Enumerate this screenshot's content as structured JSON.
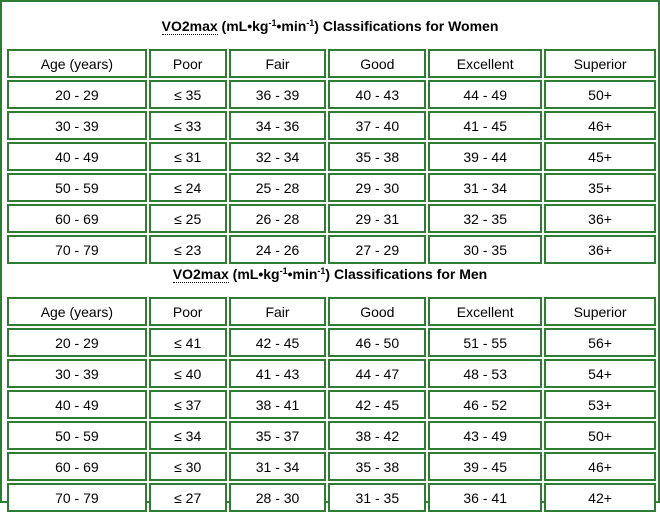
{
  "women": {
    "title": {
      "abbr": "VO2max",
      "unit_open": " (mL•kg",
      "exp1": "-1",
      "unit_mid": "•min",
      "exp2": "-1",
      "rest": ") Classifications for Women"
    },
    "headers": [
      "Age (years)",
      "Poor",
      "Fair",
      "Good",
      "Excellent",
      "Superior"
    ],
    "rows": [
      [
        "20 - 29",
        "≤ 35",
        "36 - 39",
        "40 - 43",
        "44 - 49",
        "50+"
      ],
      [
        "30 - 39",
        "≤ 33",
        "34 - 36",
        "37 - 40",
        "41 - 45",
        "46+"
      ],
      [
        "40 - 49",
        "≤ 31",
        "32 - 34",
        "35 - 38",
        "39 - 44",
        "45+"
      ],
      [
        "50 - 59",
        "≤ 24",
        "25 - 28",
        "29 - 30",
        "31 - 34",
        "35+"
      ],
      [
        "60 - 69",
        "≤ 25",
        "26 - 28",
        "29 - 31",
        "32 - 35",
        "36+"
      ],
      [
        "70 - 79",
        "≤ 23",
        "24 - 26",
        "27 - 29",
        "30 - 35",
        "36+"
      ]
    ]
  },
  "men": {
    "title": {
      "abbr": "VO2max",
      "unit_open": " (mL•kg",
      "exp1": "-1",
      "unit_mid": "•min",
      "exp2": "-1",
      "rest": ") Classifications for Men"
    },
    "headers": [
      "Age (years)",
      "Poor",
      "Fair",
      "Good",
      "Excellent",
      "Superior"
    ],
    "rows": [
      [
        "20 - 29",
        "≤ 41",
        "42 - 45",
        "46 - 50",
        "51 - 55",
        "56+"
      ],
      [
        "30 - 39",
        "≤ 40",
        "41 - 43",
        "44 - 47",
        "48 - 53",
        "54+"
      ],
      [
        "40 - 49",
        "≤ 37",
        "38 - 41",
        "42 - 45",
        "46 - 52",
        "53+"
      ],
      [
        "50 - 59",
        "≤ 34",
        "35 - 37",
        "38 - 42",
        "43 - 49",
        "50+"
      ],
      [
        "60 - 69",
        "≤ 30",
        "31 - 34",
        "35 - 38",
        "39 - 45",
        "46+"
      ],
      [
        "70 - 79",
        "≤ 27",
        "28 - 30",
        "31 - 35",
        "36 - 41",
        "42+"
      ]
    ]
  },
  "colors": {
    "border": "#2e7d32",
    "text": "#000000",
    "background": "#ffffff"
  }
}
